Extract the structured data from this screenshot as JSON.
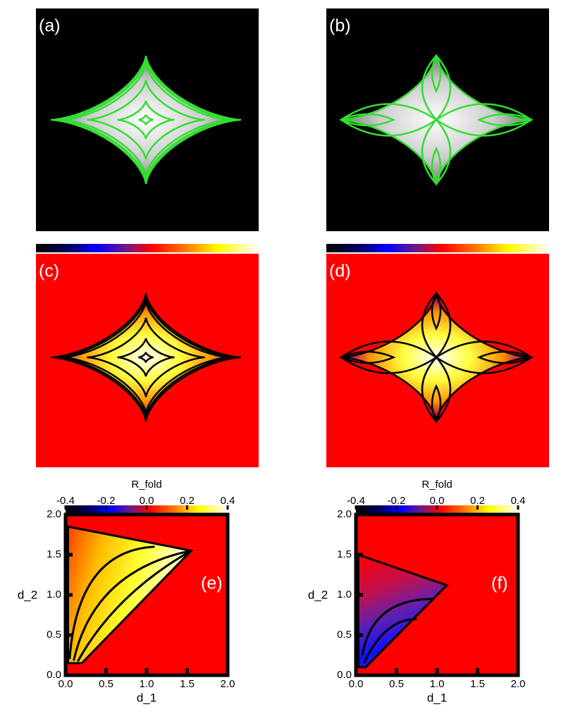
{
  "chart_data": [
    {
      "type": "image",
      "label": "(a)",
      "colorbar": false
    },
    {
      "type": "image",
      "label": "(b)",
      "colorbar": false
    },
    {
      "type": "image",
      "label": "(c)",
      "colorbar": true
    },
    {
      "type": "image",
      "label": "(d)",
      "colorbar": true
    },
    {
      "type": "heatmap",
      "label": "(e)",
      "colorbar_label": "R_fold",
      "clim": [
        -0.4,
        0.4
      ],
      "cticks": [
        -0.4,
        -0.2,
        {
          "value": 0,
          "label": "0.0"
        },
        0.2,
        0.4
      ],
      "xlabel": "d_1",
      "ylabel": "d_2",
      "xlim": [
        0,
        2
      ],
      "ylim": [
        0,
        2
      ],
      "xticks": [
        {
          "value": 0,
          "label": "0.0"
        },
        0.5,
        {
          "value": 1,
          "label": "1.0"
        },
        1.5,
        {
          "value": 2,
          "label": "2.0"
        }
      ],
      "yticks": [
        {
          "value": 0,
          "label": "0.0"
        },
        0.5,
        {
          "value": 1,
          "label": "1.0"
        },
        1.5,
        {
          "value": 2,
          "label": "2.0"
        }
      ]
    },
    {
      "type": "heatmap",
      "label": "(f)",
      "colorbar_label": "R_fold",
      "clim": [
        -0.4,
        0.4
      ],
      "cticks": [
        -0.4,
        -0.2,
        {
          "value": 0,
          "label": "0.0"
        },
        0.2,
        0.4
      ],
      "xlabel": "d_1",
      "ylabel": "d_2",
      "xlim": [
        0,
        2
      ],
      "ylim": [
        0,
        2
      ],
      "xticks": [
        {
          "value": 0,
          "label": "0.0"
        },
        0.5,
        {
          "value": 1,
          "label": "1.0"
        },
        1.5,
        {
          "value": 2,
          "label": "2.0"
        }
      ],
      "yticks": [
        {
          "value": 0,
          "label": "0.0"
        },
        0.5,
        {
          "value": 1,
          "label": "1.0"
        },
        1.5,
        {
          "value": 2,
          "label": "2.0"
        }
      ]
    }
  ]
}
